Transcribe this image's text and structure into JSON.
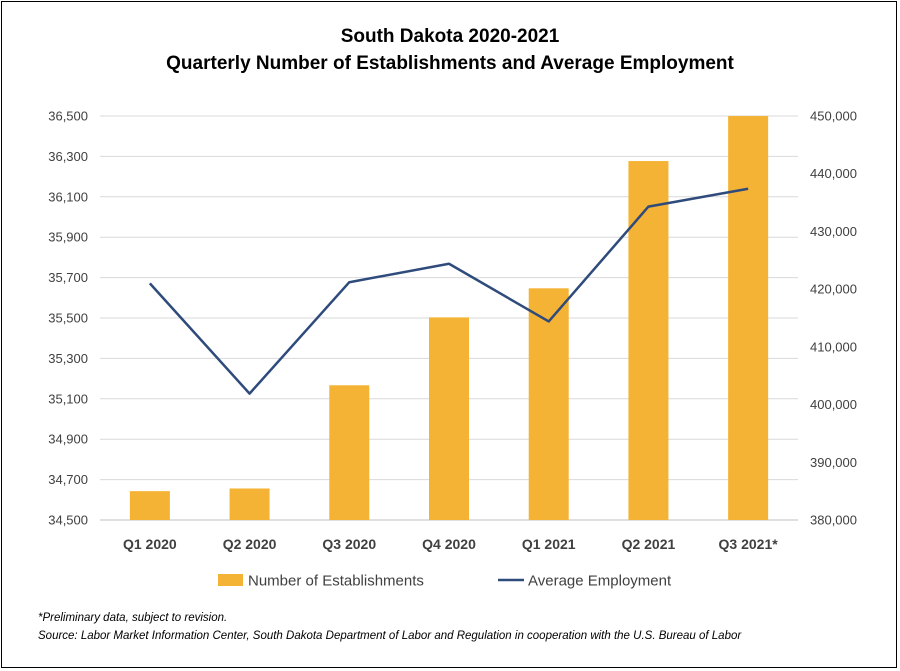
{
  "chart_data": {
    "type": "bar+line",
    "title": "South Dakota 2020-2021",
    "subtitle": "Quarterly Number of Establishments and Average Employment",
    "categories": [
      "Q1 2020",
      "Q2 2020",
      "Q3 2020",
      "Q4 2020",
      "Q1 2021",
      "Q2 2021",
      "Q3 2021*"
    ],
    "series": [
      {
        "name": "Number of Establishments",
        "type": "bar",
        "axis": "left",
        "color": "#F5B335",
        "values": [
          34643,
          34656,
          35167,
          35503,
          35647,
          36277,
          36500
        ]
      },
      {
        "name": "Average Employment",
        "type": "line",
        "axis": "right",
        "color": "#2F4B7C",
        "values": [
          421000,
          401900,
          421200,
          424400,
          414400,
          434300,
          437400
        ]
      }
    ],
    "y_left": {
      "min": 34500,
      "max": 36500,
      "ticks": [
        34500,
        34700,
        34900,
        35100,
        35300,
        35500,
        35700,
        35900,
        36100,
        36300,
        36500
      ],
      "tick_labels": [
        "34,500",
        "34,700",
        "34,900",
        "35,100",
        "35,300",
        "35,500",
        "35,700",
        "35,900",
        "36,100",
        "36,300",
        "36,500"
      ]
    },
    "y_right": {
      "min": 380000,
      "max": 450000,
      "ticks": [
        380000,
        390000,
        400000,
        410000,
        420000,
        430000,
        440000,
        450000
      ],
      "tick_labels": [
        "380,000",
        "390,000",
        "400,000",
        "410,000",
        "420,000",
        "430,000",
        "440,000",
        "450,000"
      ]
    },
    "grid": true,
    "legend": "bottom-center"
  },
  "notes": {
    "preliminary": "*Preliminary data, subject to revision.",
    "source": "Source: Labor Market Information Center, South Dakota Department of Labor and Regulation in cooperation with the U.S. Bureau of Labor"
  }
}
